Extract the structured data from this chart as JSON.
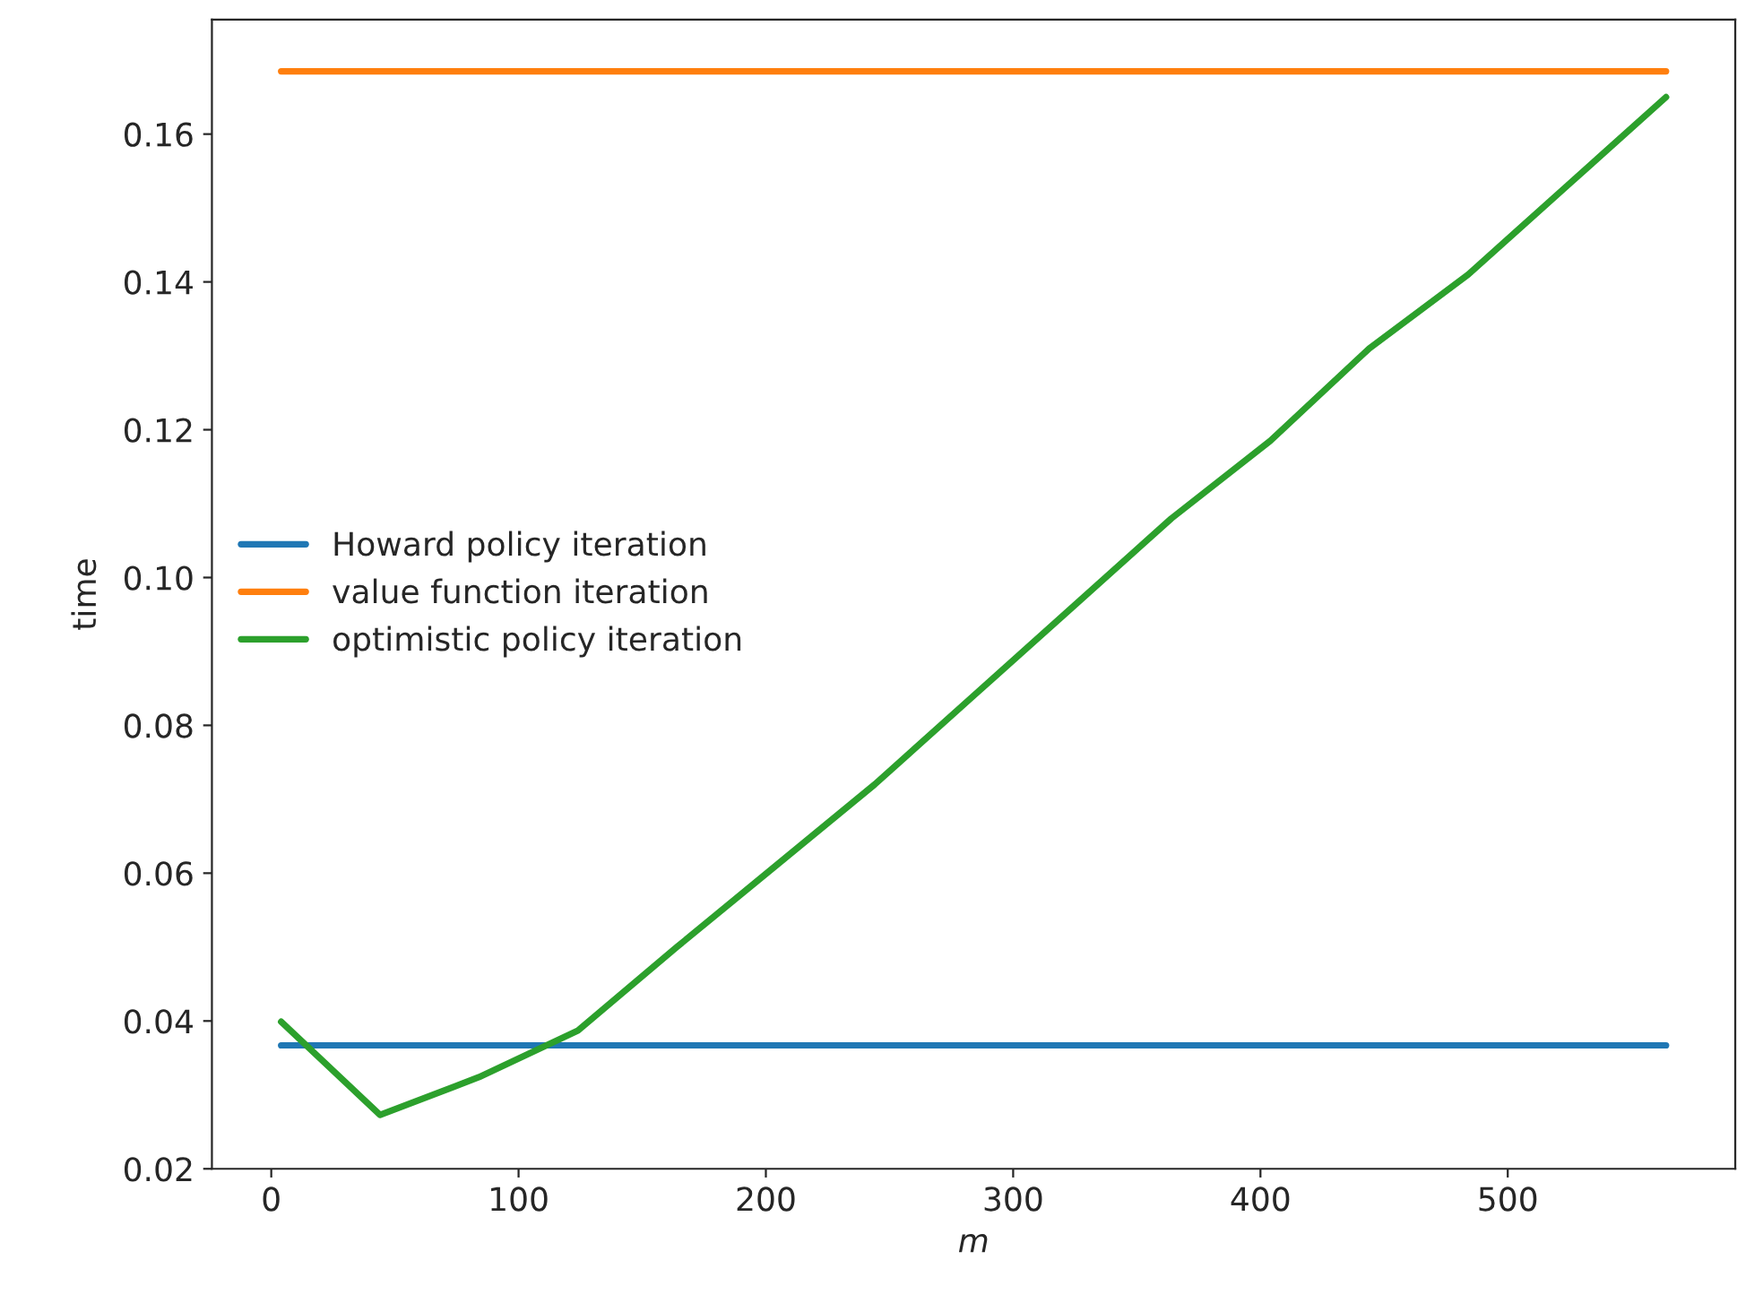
{
  "chart_data": {
    "type": "line",
    "xlabel": "m",
    "ylabel": "time",
    "x": [
      4,
      44,
      84,
      124,
      164,
      204,
      244,
      284,
      324,
      364,
      404,
      444,
      484,
      524,
      564
    ],
    "series": [
      {
        "name": "Howard policy iteration",
        "color": "#1f77b4",
        "values": [
          0.0367,
          0.0367,
          0.0367,
          0.0367,
          0.0367,
          0.0367,
          0.0367,
          0.0367,
          0.0367,
          0.0367,
          0.0367,
          0.0367,
          0.0367,
          0.0367,
          0.0367
        ]
      },
      {
        "name": "value function iteration",
        "color": "#ff7f0e",
        "values": [
          0.1685,
          0.1685,
          0.1685,
          0.1685,
          0.1685,
          0.1685,
          0.1685,
          0.1685,
          0.1685,
          0.1685,
          0.1685,
          0.1685,
          0.1685,
          0.1685,
          0.1685
        ]
      },
      {
        "name": "optimistic policy iteration",
        "color": "#2ca02c",
        "values": [
          0.0399,
          0.0273,
          0.0324,
          0.0387,
          0.05,
          0.061,
          0.072,
          0.084,
          0.096,
          0.108,
          0.1185,
          0.131,
          0.141,
          0.153,
          0.165
        ]
      }
    ],
    "xlim": [
      -24,
      592
    ],
    "xticks": [
      0,
      100,
      200,
      300,
      400,
      500
    ],
    "ylim": [
      0.02,
      0.1755
    ],
    "yticks": [
      {
        "value": 0.02,
        "label": "0.02"
      },
      {
        "value": 0.04,
        "label": "0.04"
      },
      {
        "value": 0.06,
        "label": "0.06"
      },
      {
        "value": 0.08,
        "label": "0.08"
      },
      {
        "value": 0.1,
        "label": "0.10"
      },
      {
        "value": 0.12,
        "label": "0.12"
      },
      {
        "value": 0.14,
        "label": "0.14"
      },
      {
        "value": 0.16,
        "label": "0.16"
      }
    ],
    "legend": "left",
    "grid": false
  }
}
